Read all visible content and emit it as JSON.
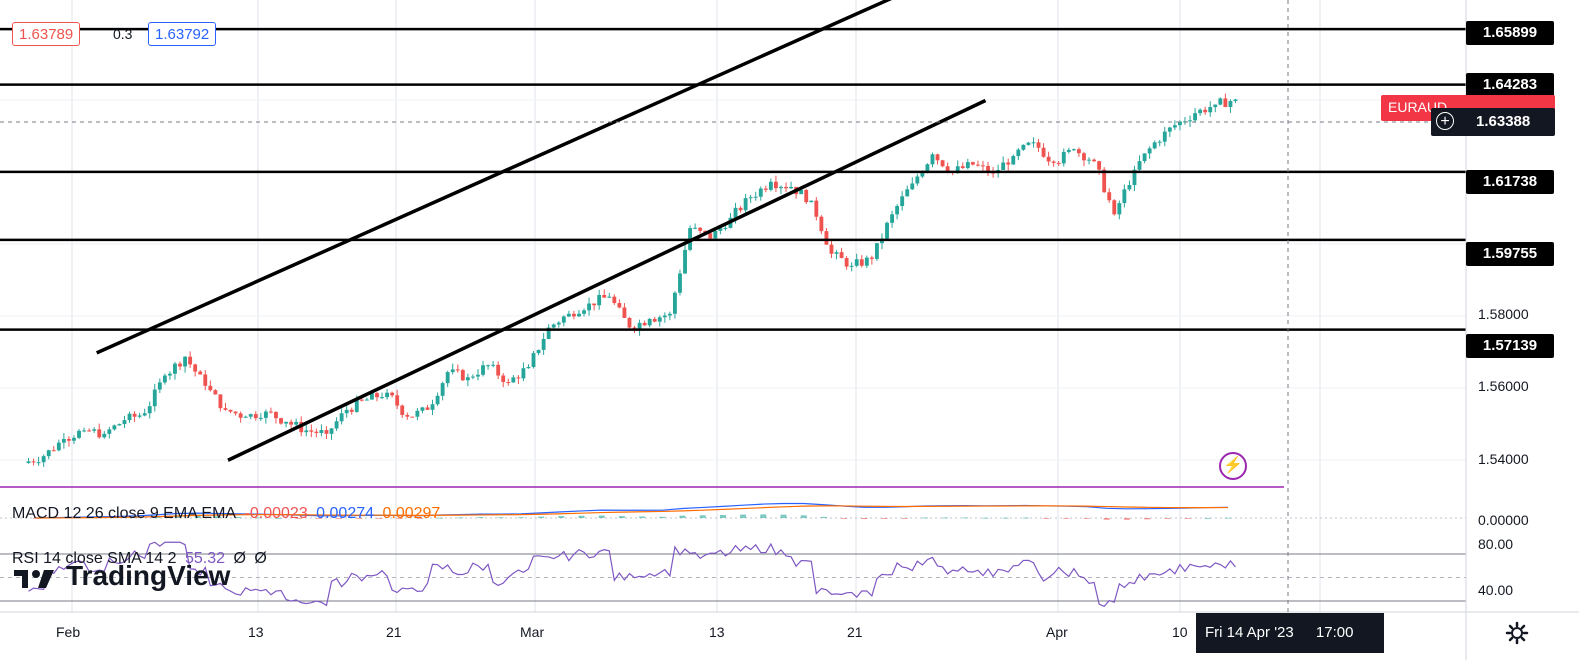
{
  "header": {
    "bid": "1.63789",
    "spread": "0.3",
    "ask": "1.63792"
  },
  "symbol_tag": "EURAUD",
  "crosshair_price": "1.63388",
  "crosshair_time": "Fri 14 Apr '23",
  "crosshair_clock": "17:00",
  "brand": "TradingView",
  "colors": {
    "up": "#26a69a",
    "down": "#ef5350",
    "macd": "#2962ff",
    "signal": "#ff6d00",
    "rsi": "#7e57c2",
    "symbol_tag": "#f23645"
  },
  "macd": {
    "label": "MACD 12 26 close 9 EMA EMA",
    "hist": "-0.00023",
    "macd": "0.00274",
    "signal": "0.00297"
  },
  "rsi": {
    "label": "RSI 14 close SMA 14 2",
    "value": "55.32",
    "extra1": "Ø",
    "extra2": "Ø"
  },
  "chart_data": {
    "type": "candlestick",
    "price_axis_ticks": [
      "1.54000",
      "1.56000",
      "1.58000"
    ],
    "horizontal_levels": [
      "1.65899",
      "1.64283",
      "1.61738",
      "1.59755",
      "1.57139"
    ],
    "macd_axis_ticks": [
      "0.00000"
    ],
    "rsi_axis_ticks": [
      "80.00",
      "40.00"
    ],
    "time_ticks": [
      "Feb",
      "13",
      "21",
      "Mar",
      "13",
      "21",
      "Apr",
      "10"
    ],
    "price_range": [
      1.5255,
      1.6675
    ],
    "trend_channel": {
      "upper": [
        [
          3.5,
          1.5646
        ],
        [
          43.0,
          1.6684
        ]
      ],
      "lower": [
        [
          10.0,
          1.5333
        ],
        [
          47.5,
          1.6382
        ]
      ]
    },
    "candles_per_day": 4,
    "daily_closes": [
      1.5345,
      1.5395,
      1.542,
      1.541,
      1.545,
      1.547,
      1.558,
      1.5635,
      1.555,
      1.548,
      1.546,
      1.5475,
      1.5445,
      1.542,
      1.541,
      1.548,
      1.551,
      1.553,
      1.546,
      1.548,
      1.559,
      1.5575,
      1.561,
      1.556,
      1.5605,
      1.572,
      1.576,
      1.579,
      1.581,
      1.572,
      1.5745,
      1.576,
      1.601,
      1.598,
      1.604,
      1.61,
      1.6145,
      1.613,
      1.609,
      1.5935,
      1.59,
      1.592,
      1.605,
      1.614,
      1.6225,
      1.6175,
      1.6195,
      1.617,
      1.622,
      1.626,
      1.62,
      1.624,
      1.6205,
      1.605,
      1.618,
      1.626,
      1.631,
      1.6345,
      1.637,
      1.6385
    ]
  }
}
